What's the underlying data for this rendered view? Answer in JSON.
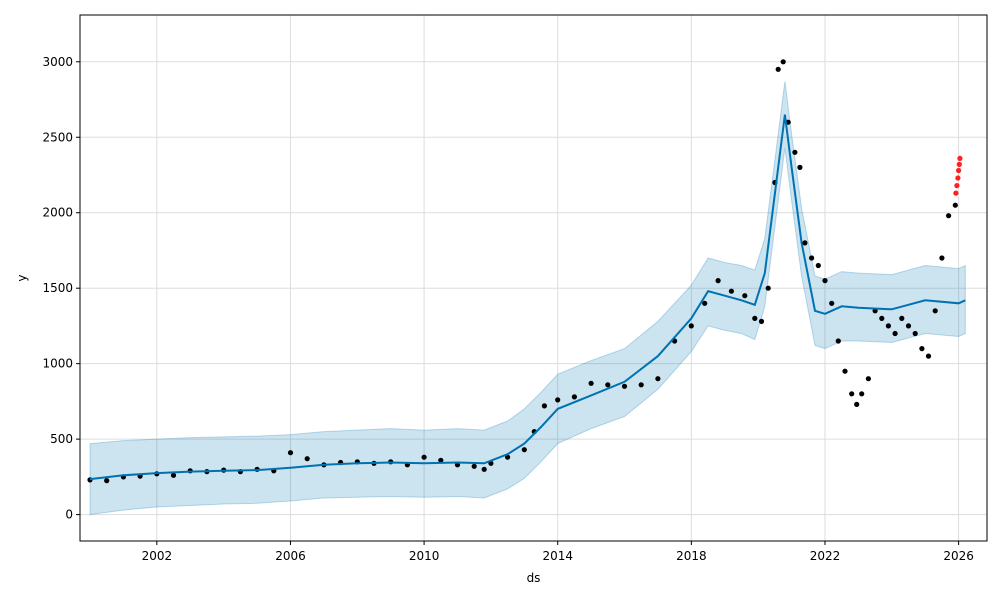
{
  "chart_data": {
    "type": "line",
    "title": "",
    "xlabel": "ds",
    "ylabel": "y",
    "xlim": [
      1999.7,
      2026.85
    ],
    "ylim": [
      -175,
      3310
    ],
    "grid": true,
    "x_ticks": [
      2002,
      2006,
      2010,
      2014,
      2018,
      2022,
      2026
    ],
    "x_tick_labels": [
      "2002",
      "2006",
      "2010",
      "2014",
      "2018",
      "2022",
      "2026"
    ],
    "y_ticks": [
      0,
      500,
      1000,
      1500,
      2000,
      2500,
      3000
    ],
    "y_tick_labels": [
      "0",
      "500",
      "1000",
      "1500",
      "2000",
      "2500",
      "3000"
    ],
    "colors": {
      "forecast_line": "#0072B2",
      "uncertainty_fill": "#0072B2",
      "observed_points": "#000000",
      "recent_points": "#ff2020",
      "grid": "#dddddd"
    },
    "series": [
      {
        "name": "",
        "role": "forecast yhat",
        "x": [
          2000.0,
          2001.0,
          2002.0,
          2003.0,
          2004.0,
          2005.0,
          2006.0,
          2007.0,
          2008.0,
          2009.0,
          2010.0,
          2011.0,
          2011.8,
          2012.5,
          2013.0,
          2013.5,
          2014.0,
          2015.0,
          2016.0,
          2017.0,
          2018.0,
          2018.5,
          2019.0,
          2019.5,
          2019.9,
          2020.2,
          2020.6,
          2020.8,
          2021.0,
          2021.3,
          2021.7,
          2022.0,
          2022.5,
          2023.0,
          2024.0,
          2025.0,
          2026.0,
          2026.2
        ],
        "values": [
          235,
          260,
          275,
          285,
          290,
          295,
          310,
          330,
          340,
          345,
          340,
          345,
          340,
          400,
          470,
          580,
          700,
          790,
          880,
          1050,
          1300,
          1480,
          1450,
          1420,
          1390,
          1600,
          2300,
          2650,
          2300,
          1800,
          1350,
          1330,
          1380,
          1370,
          1360,
          1420,
          1400,
          1420
        ]
      },
      {
        "name": "",
        "role": "uncertainty band",
        "x": [
          2000.0,
          2001.0,
          2002.0,
          2003.0,
          2004.0,
          2005.0,
          2006.0,
          2007.0,
          2008.0,
          2009.0,
          2010.0,
          2011.0,
          2011.8,
          2012.5,
          2013.0,
          2013.5,
          2014.0,
          2015.0,
          2016.0,
          2017.0,
          2018.0,
          2018.5,
          2019.0,
          2019.5,
          2019.9,
          2020.2,
          2020.6,
          2020.8,
          2021.0,
          2021.3,
          2021.7,
          2022.0,
          2022.5,
          2023.0,
          2024.0,
          2025.0,
          2026.0,
          2026.2
        ],
        "lower": [
          0,
          30,
          50,
          60,
          70,
          75,
          90,
          110,
          115,
          120,
          115,
          120,
          110,
          170,
          240,
          350,
          470,
          570,
          650,
          830,
          1080,
          1250,
          1220,
          1200,
          1160,
          1380,
          2080,
          2430,
          2080,
          1580,
          1120,
          1100,
          1150,
          1150,
          1140,
          1200,
          1180,
          1200
        ],
        "upper": [
          470,
          490,
          500,
          510,
          515,
          520,
          530,
          550,
          560,
          570,
          560,
          570,
          560,
          620,
          700,
          810,
          930,
          1020,
          1100,
          1280,
          1520,
          1700,
          1670,
          1650,
          1620,
          1830,
          2520,
          2870,
          2520,
          2030,
          1580,
          1560,
          1610,
          1600,
          1590,
          1650,
          1630,
          1650
        ]
      },
      {
        "name": "",
        "role": "observed y",
        "x": [
          2000.0,
          2000.5,
          2001.0,
          2001.5,
          2002.0,
          2002.5,
          2003.0,
          2003.5,
          2004.0,
          2004.5,
          2005.0,
          2005.5,
          2006.0,
          2006.5,
          2007.0,
          2007.5,
          2008.0,
          2008.5,
          2009.0,
          2009.5,
          2010.0,
          2010.5,
          2011.0,
          2011.5,
          2011.8,
          2012.0,
          2012.5,
          2013.0,
          2013.3,
          2013.6,
          2014.0,
          2014.5,
          2015.0,
          2015.5,
          2016.0,
          2016.5,
          2017.0,
          2017.5,
          2018.0,
          2018.4,
          2018.8,
          2019.2,
          2019.6,
          2019.9,
          2020.1,
          2020.3,
          2020.5,
          2020.6,
          2020.75,
          2020.9,
          2021.1,
          2021.25,
          2021.4,
          2021.6,
          2021.8,
          2022.0,
          2022.2,
          2022.4,
          2022.6,
          2022.8,
          2022.95,
          2023.1,
          2023.3,
          2023.5,
          2023.7,
          2023.9,
          2024.1,
          2024.3,
          2024.5,
          2024.7,
          2024.9,
          2025.1,
          2025.3,
          2025.5,
          2025.7,
          2025.9
        ],
        "values": [
          230,
          225,
          250,
          255,
          270,
          260,
          290,
          285,
          295,
          285,
          300,
          290,
          410,
          370,
          330,
          345,
          350,
          340,
          350,
          330,
          380,
          360,
          330,
          320,
          300,
          340,
          380,
          430,
          550,
          720,
          760,
          780,
          870,
          860,
          850,
          860,
          900,
          1150,
          1250,
          1400,
          1550,
          1480,
          1450,
          1300,
          1280,
          1500,
          2200,
          2950,
          3000,
          2600,
          2400,
          2300,
          1800,
          1700,
          1650,
          1550,
          1400,
          1150,
          950,
          800,
          730,
          800,
          900,
          1350,
          1300,
          1250,
          1200,
          1300,
          1250,
          1200,
          1100,
          1050,
          1350,
          1700,
          1980,
          2050
        ]
      },
      {
        "name": "",
        "role": "recent observed",
        "x": [
          2025.92,
          2025.95,
          2025.98,
          2026.0,
          2026.02,
          2026.04
        ],
        "values": [
          2130,
          2180,
          2230,
          2280,
          2320,
          2360
        ]
      }
    ]
  }
}
